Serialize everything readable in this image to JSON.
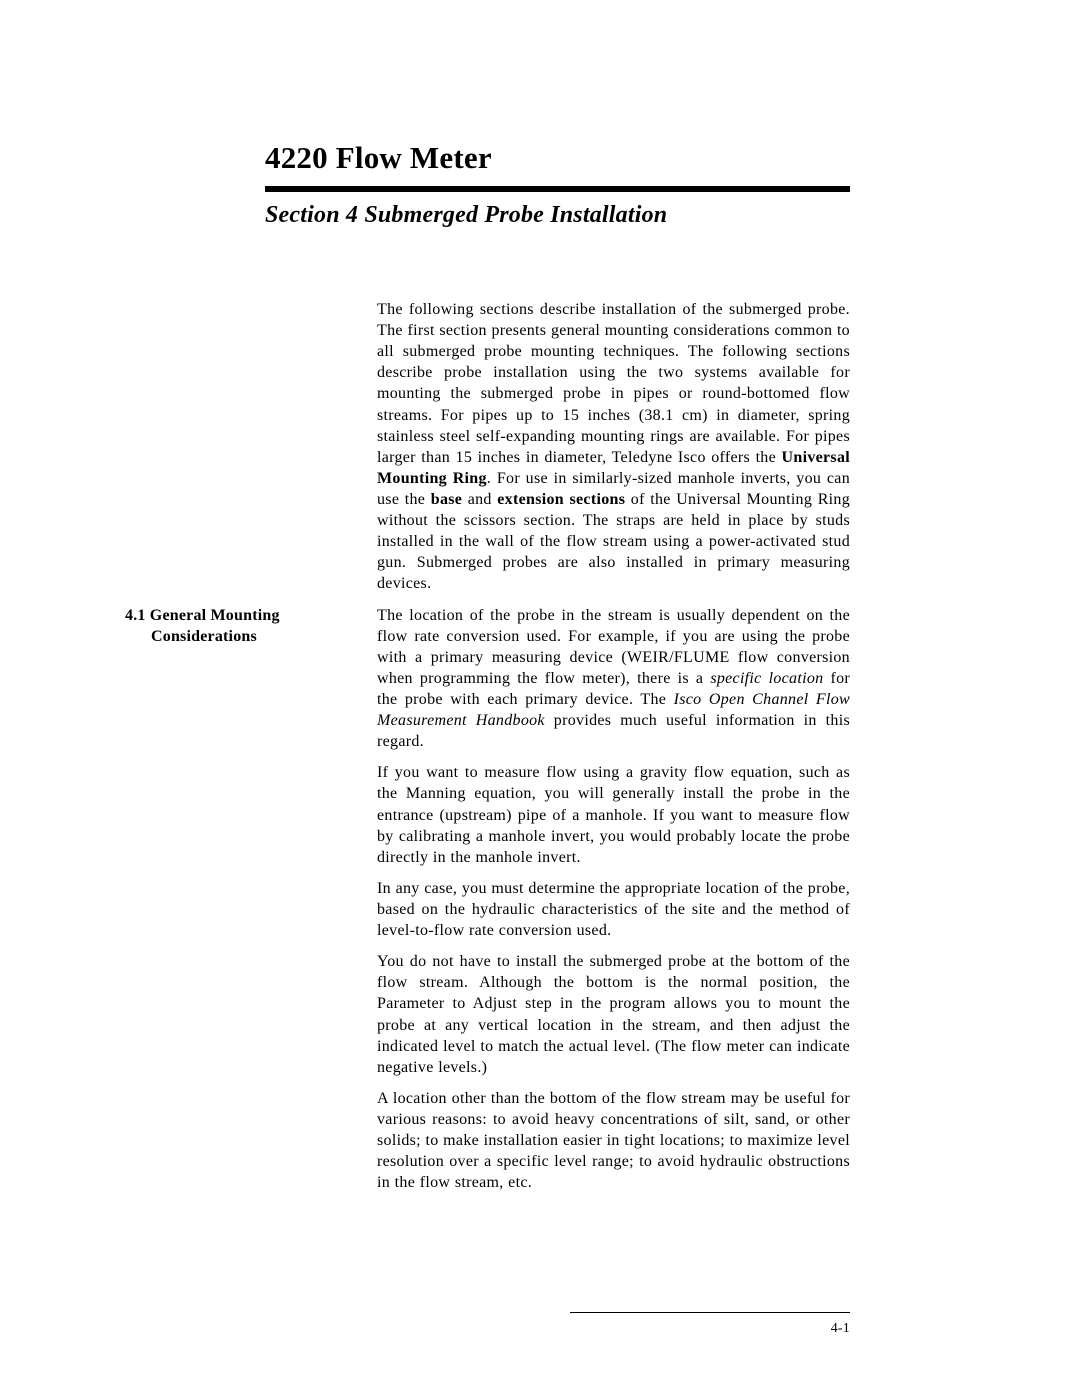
{
  "doc_title": "4220 Flow Meter",
  "section_title": "Section 4  Submerged Probe Installation",
  "intro_html": "The following sections describe installation of the submerged probe. The first section presents general mounting considerations common to all submerged probe mounting techniques. The following sections describe probe installation using the two systems available for mounting the submerged probe in pipes or round-bottomed flow streams. For pipes up to 15 inches (38.1 cm) in diameter, spring stainless steel self-expanding mounting rings are available. For pipes larger than 15 inches in diameter, Teledyne Isco offers the <strong>Universal Mounting Ring</strong>. For use in similarly-sized manhole inverts, you can use the <strong>base</strong> and <strong>extension sections</strong> of the Universal Mounting Ring without the scissors section. The straps are held in place by studs installed in the wall of the flow stream using a power-activated stud gun. Submerged probes are also installed in primary measuring devices.",
  "subsection": {
    "number": "4.1",
    "heading_l1": "4.1 General Mounting",
    "heading_l2": "Considerations",
    "paras": [
      "The location of the probe in the stream is usually dependent on the flow rate conversion used. For example, if you are using the probe with a primary measuring device (WEIR/FLUME flow conversion when programming the flow meter), there is a <em>specific location</em> for the probe with each primary device. The <em>Isco Open Channel Flow Measurement Handbook</em> provides much useful information in this regard.",
      "If you want to measure flow using a gravity flow equation, such as the Manning equation, you will generally install the probe in the entrance (upstream) pipe of a manhole. If you want to measure flow by calibrating a manhole invert, you would probably locate the probe directly in the manhole invert.",
      "In any case, you must determine the appropriate location of the probe, based on the hydraulic characteristics of the site and the method of level-to-flow rate conversion used.",
      "You do not have to install the submerged probe at the bottom of the flow stream. Although the bottom is the normal position, the Parameter to Adjust step in the program allows you to mount the probe at any vertical location in the stream, and then adjust the indicated level to match the actual level. (The flow meter can indicate negative levels.)",
      "A location other than the bottom of the flow stream may be useful for various reasons: to avoid heavy concentrations of silt, sand, or other solids; to make installation easier in tight locations; to maximize level resolution over a specific level range; to avoid hydraulic obstructions in the flow stream, etc."
    ]
  },
  "page_number": "4-1",
  "colors": {
    "text": "#000000",
    "background": "#ffffff",
    "rule": "#000000"
  },
  "typography": {
    "title_fontsize": 31,
    "section_fontsize": 24,
    "body_fontsize": 16,
    "line_height": 1.32,
    "font_family": "Century Schoolbook"
  }
}
